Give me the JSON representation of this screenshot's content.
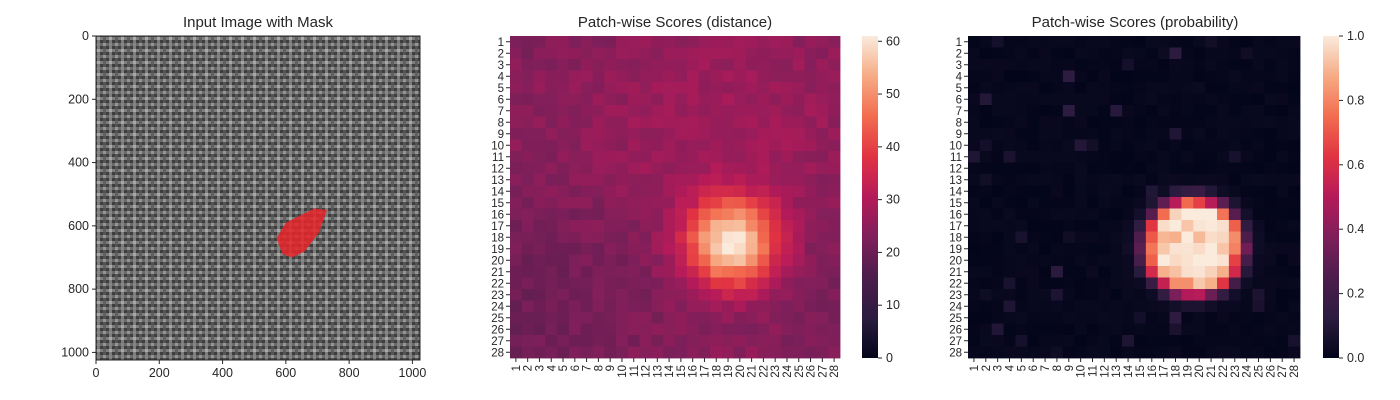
{
  "chart_data": [
    {
      "type": "image",
      "title": "Input Image with Mask",
      "xlim": [
        0,
        1024
      ],
      "ylim": [
        1024,
        0
      ],
      "xticks": [
        0,
        200,
        400,
        600,
        800,
        1000
      ],
      "yticks": [
        0,
        200,
        400,
        600,
        800,
        1000
      ],
      "texture": "gray woven fabric",
      "mask": {
        "color": "#e8252a",
        "polygon": [
          [
            570,
            640
          ],
          [
            600,
            590
          ],
          [
            690,
            545
          ],
          [
            730,
            550
          ],
          [
            705,
            620
          ],
          [
            660,
            680
          ],
          [
            620,
            700
          ],
          [
            590,
            690
          ]
        ]
      }
    },
    {
      "type": "heatmap",
      "title": "Patch-wise Scores (distance)",
      "rows": 28,
      "cols": 28,
      "value_range": [
        0,
        61
      ],
      "colorbar_ticks": [
        0,
        10,
        20,
        30,
        40,
        50,
        60
      ],
      "colormap": "rocket",
      "background_mean": 24,
      "hotspot": {
        "center_row": 18.5,
        "center_col": 19.3,
        "peak": 61,
        "radius": 2.7
      }
    },
    {
      "type": "heatmap",
      "title": "Patch-wise Scores (probability)",
      "rows": 28,
      "cols": 28,
      "value_range": [
        0,
        1
      ],
      "colorbar_ticks": [
        "0.0",
        "0.2",
        "0.4",
        "0.6",
        "0.8",
        "1.0"
      ],
      "colormap": "rocket",
      "background_mean": 0.02,
      "hotspot": {
        "center_row": 18.8,
        "center_col": 19.5,
        "peak": 1.0,
        "radius": 4.2
      }
    }
  ]
}
